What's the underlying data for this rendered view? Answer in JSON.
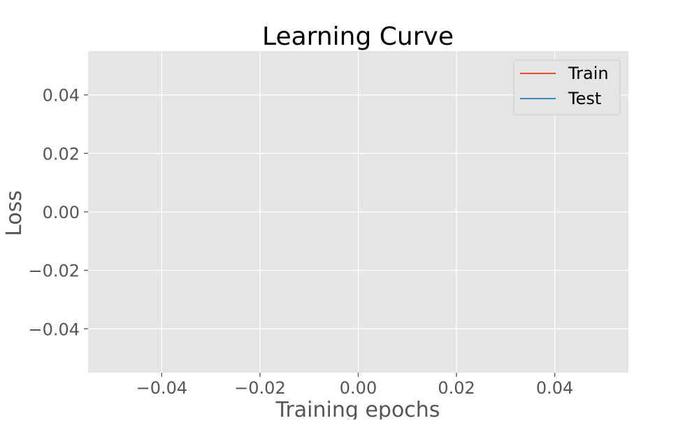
{
  "chart_data": {
    "type": "line",
    "title": "Learning Curve",
    "xlabel": "Training epochs",
    "ylabel": "Loss",
    "xlim": [
      -0.055,
      0.055
    ],
    "ylim": [
      -0.055,
      0.055
    ],
    "x_ticks": [
      -0.04,
      -0.02,
      0.0,
      0.02,
      0.04
    ],
    "y_ticks": [
      -0.04,
      -0.02,
      0.0,
      0.02,
      0.04
    ],
    "x_tick_labels": [
      "−0.04",
      "−0.02",
      "0.00",
      "0.02",
      "0.04"
    ],
    "y_tick_labels": [
      "−0.04",
      "−0.02",
      "0.00",
      "0.02",
      "0.04"
    ],
    "grid": true,
    "legend_position": "top-right",
    "series": [
      {
        "name": "Train",
        "color": "#E24A33",
        "x": [],
        "y": []
      },
      {
        "name": "Test",
        "color": "#348ABD",
        "x": [],
        "y": []
      }
    ],
    "style": {
      "plot_background": "#E5E5E5",
      "grid_color": "#FFFFFF",
      "tick_color": "#555555"
    }
  }
}
